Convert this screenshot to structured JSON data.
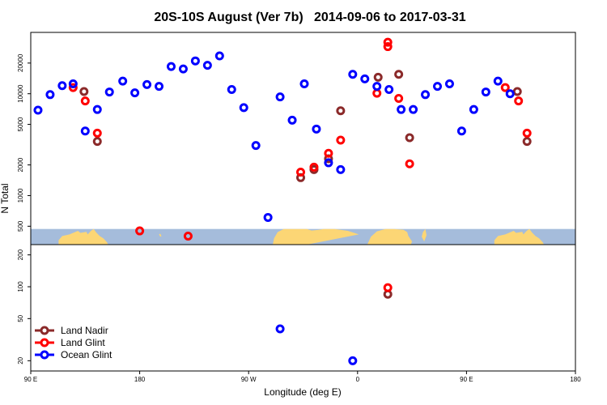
{
  "chart_data": {
    "type": "scatter",
    "title": "20S-10S August (Ver 7b)   2014-09-06 to 2017-03-31",
    "xlabel": "Longitude (deg E)",
    "ylabel": "N Total",
    "x_ticks": [
      {
        "value": 90,
        "label": "90 E"
      },
      {
        "value": 180,
        "label": "180"
      },
      {
        "value": 270,
        "label": "90 W"
      },
      {
        "value": 360,
        "label": "0"
      },
      {
        "value": 450,
        "label": "90 E"
      },
      {
        "value": 540,
        "label": "180"
      }
    ],
    "xlim": [
      90,
      540
    ],
    "top_panel": {
      "scale": "log",
      "ylim": [
        330,
        40000
      ],
      "y_ticks": [
        {
          "value": 500,
          "label": "500"
        },
        {
          "value": 1000,
          "label": "1000"
        },
        {
          "value": 2000,
          "label": "2000"
        },
        {
          "value": 5000,
          "label": "5000"
        },
        {
          "value": 10000,
          "label": "10000"
        },
        {
          "value": 20000,
          "label": "20000"
        }
      ],
      "map_band": {
        "ocean_color": "#a5bcdb",
        "land_color": "#fcd675",
        "y_range": [
          330,
          470
        ]
      }
    },
    "bottom_panel": {
      "scale": "log",
      "ylim": [
        16,
        250
      ],
      "y_ticks": [
        {
          "value": 20,
          "label": "20"
        },
        {
          "value": 50,
          "label": "50"
        },
        {
          "value": 100,
          "label": "100"
        },
        {
          "value": 200,
          "label": "200"
        }
      ]
    },
    "series": [
      {
        "name": "Land Nadir",
        "color": "#8b2a2a",
        "top": [
          [
            134,
            10500
          ],
          [
            145,
            3400
          ],
          [
            313,
            1500
          ],
          [
            324,
            1800
          ],
          [
            336,
            2300
          ],
          [
            346,
            6800
          ],
          [
            377,
            14500
          ],
          [
            394,
            15500
          ],
          [
            403,
            3700
          ],
          [
            492,
            10500
          ],
          [
            500,
            3400
          ]
        ],
        "bottom": [
          [
            385,
            85
          ]
        ]
      },
      {
        "name": "Land Glint",
        "color": "#ff0000",
        "top": [
          [
            125,
            11500
          ],
          [
            135,
            8500
          ],
          [
            145,
            4100
          ],
          [
            180,
            450
          ],
          [
            220,
            400
          ],
          [
            313,
            1700
          ],
          [
            324,
            1900
          ],
          [
            336,
            2600
          ],
          [
            346,
            3500
          ],
          [
            376,
            10100
          ],
          [
            385,
            29000
          ],
          [
            385,
            32000
          ],
          [
            394,
            9000
          ],
          [
            403,
            2050
          ],
          [
            482,
            11500
          ],
          [
            493,
            8500
          ],
          [
            500,
            4100
          ]
        ],
        "bottom": [
          [
            385,
            98
          ]
        ]
      },
      {
        "name": "Ocean Glint",
        "color": "#0000ff",
        "top": [
          [
            96,
            6900
          ],
          [
            106,
            9800
          ],
          [
            116,
            12000
          ],
          [
            125,
            12500
          ],
          [
            135,
            4300
          ],
          [
            145,
            7000
          ],
          [
            155,
            10400
          ],
          [
            166,
            13300
          ],
          [
            176,
            10200
          ],
          [
            186,
            12300
          ],
          [
            196,
            11800
          ],
          [
            206,
            18500
          ],
          [
            216,
            17500
          ],
          [
            226,
            21000
          ],
          [
            236,
            19000
          ],
          [
            246,
            23500
          ],
          [
            256,
            11000
          ],
          [
            266,
            7300
          ],
          [
            276,
            3100
          ],
          [
            286,
            610
          ],
          [
            296,
            9300
          ],
          [
            306,
            5500
          ],
          [
            316,
            12500
          ],
          [
            326,
            4500
          ],
          [
            336,
            2100
          ],
          [
            346,
            1800
          ],
          [
            356,
            15500
          ],
          [
            366,
            14000
          ],
          [
            376,
            11800
          ],
          [
            386,
            11000
          ],
          [
            396,
            7000
          ],
          [
            406,
            7000
          ],
          [
            416,
            9800
          ],
          [
            426,
            11800
          ],
          [
            436,
            12500
          ],
          [
            446,
            4300
          ],
          [
            456,
            7000
          ],
          [
            466,
            10400
          ],
          [
            476,
            13300
          ],
          [
            486,
            10000
          ]
        ],
        "bottom": [
          [
            296,
            40
          ],
          [
            356,
            20
          ]
        ]
      }
    ],
    "legend": {
      "placement": "bottom-left",
      "entries": [
        "Land Nadir",
        "Land Glint",
        "Ocean Glint"
      ]
    }
  }
}
